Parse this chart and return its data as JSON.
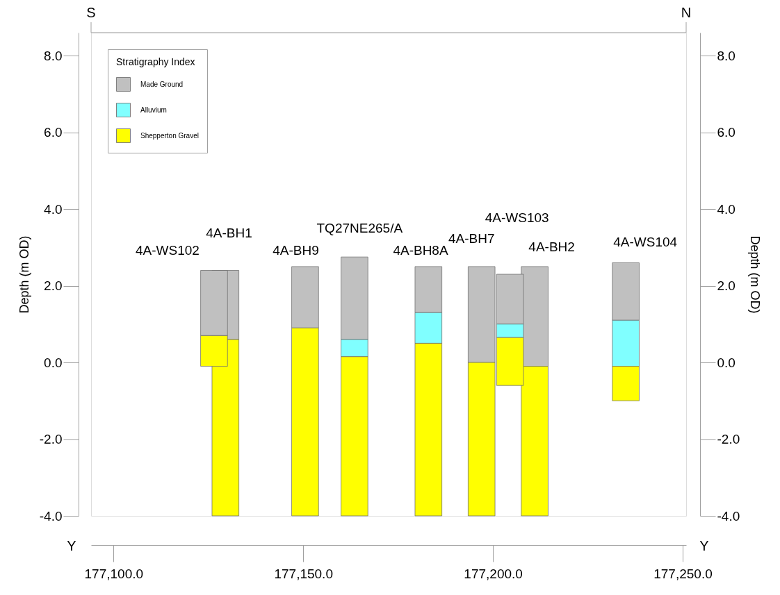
{
  "chart_data": {
    "type": "bar",
    "legend_title": "Stratigraphy Index",
    "ylabel": "Depth (m OD)",
    "y2label": "Depth (m OD)",
    "x": [
      177126.5,
      177129.5,
      177150.5,
      177163.5,
      177183,
      177197,
      177204.5,
      177211,
      177235
    ],
    "series": [
      {
        "name": "Made Ground",
        "color": "#c0c0c0",
        "values": [
          1.7,
          1.8,
          1.6,
          2.15,
          1.2,
          2.5,
          1.3,
          2.6,
          1.5
        ],
        "base": [
          0.7,
          0.6,
          0.9,
          0.6,
          1.3,
          0.0,
          1.0,
          -0.1,
          1.1
        ]
      },
      {
        "name": "Alluvium",
        "color": "#80ffff",
        "values": [
          null,
          null,
          null,
          0.45,
          0.8,
          null,
          0.35,
          null,
          1.2
        ],
        "base": [
          null,
          null,
          null,
          0.15,
          0.5,
          null,
          0.65,
          null,
          -0.1
        ]
      },
      {
        "name": "Shepperton Gravel",
        "color": "#ffff00",
        "values": [
          0.8,
          4.6,
          4.9,
          4.15,
          4.5,
          4.0,
          1.25,
          3.9,
          0.9
        ],
        "base": [
          -0.1,
          -4.0,
          -4.0,
          -4.0,
          -4.0,
          -4.0,
          -0.6,
          -4.0,
          -1.0
        ]
      }
    ],
    "xlim": [
      177095,
      177250
    ],
    "xticks": [
      {
        "value": 177100,
        "label": "177,100.0"
      },
      {
        "value": 177150,
        "label": "177,150.0"
      },
      {
        "value": 177200,
        "label": "177,200.0"
      },
      {
        "value": 177250,
        "label": "177,250.0"
      }
    ],
    "ylim": [
      -4,
      8.6
    ],
    "yticks": [
      {
        "value": -4,
        "label": "-4.0"
      },
      {
        "value": -2,
        "label": "-2.0"
      },
      {
        "value": 0,
        "label": "0.0"
      },
      {
        "value": 2,
        "label": "2.0"
      },
      {
        "value": 4,
        "label": "4.0"
      },
      {
        "value": 6,
        "label": "6.0"
      },
      {
        "value": 8,
        "label": "8.0"
      }
    ],
    "y2lim": [
      -4,
      8.6
    ],
    "y2ticks": [
      {
        "value": -4,
        "label": "-4.0"
      },
      {
        "value": -2,
        "label": "-2.0"
      },
      {
        "value": 0,
        "label": "0.0"
      },
      {
        "value": 2,
        "label": "2.0"
      },
      {
        "value": 4,
        "label": "4.0"
      },
      {
        "value": 6,
        "label": "6.0"
      },
      {
        "value": 8,
        "label": "8.0"
      }
    ],
    "legend": "top left",
    "annotations": [
      "S",
      "N",
      "Y",
      "Y",
      "4A-WS102",
      "4A-BH1",
      "4A-BH9",
      "TQ27NE265/A",
      "4A-BH8A",
      "4A-BH7",
      "4A-WS103",
      "4A-BH2",
      "4A-WS104"
    ]
  }
}
